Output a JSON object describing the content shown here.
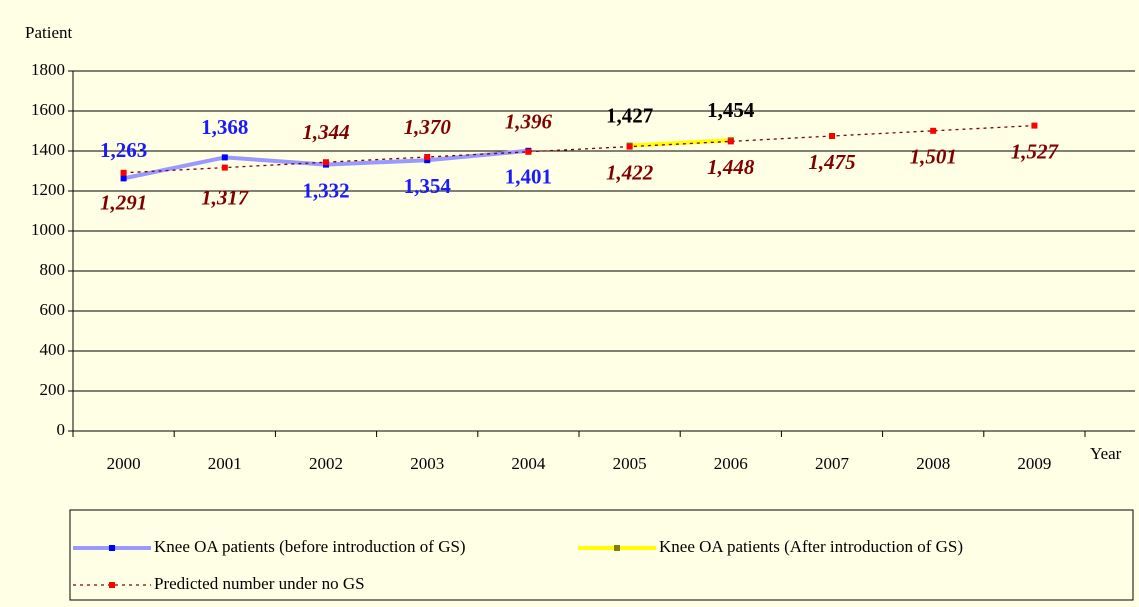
{
  "chart_data": {
    "type": "line",
    "y_label": "Patient",
    "x_label": "Year",
    "categories": [
      "2000",
      "2001",
      "2002",
      "2003",
      "2004",
      "2005",
      "2006",
      "2007",
      "2008",
      "2009"
    ],
    "ylim": [
      0,
      1800
    ],
    "yticks": [
      0,
      200,
      400,
      600,
      800,
      1000,
      1200,
      1400,
      1600,
      1800
    ],
    "grid": true,
    "legend": "bottom",
    "series": [
      {
        "name": "Knee OA patients (before introduction of GS)",
        "color": "#9999ff",
        "marker_color": "#0000ff",
        "label_color": "#1a1aff",
        "values": [
          1263,
          1368,
          1332,
          1354,
          1401,
          null,
          null,
          null,
          null,
          null
        ],
        "value_labels": [
          "1,263",
          "1,368",
          "1,332",
          "1,354",
          "1,401",
          null,
          null,
          null,
          null,
          null
        ]
      },
      {
        "name": "Knee OA patients (After introduction of GS)",
        "color": "#ffff00",
        "marker_color": "#808000",
        "label_color": "#000000",
        "values": [
          null,
          null,
          null,
          null,
          null,
          1427,
          1454,
          null,
          null,
          null
        ],
        "value_labels": [
          null,
          null,
          null,
          null,
          null,
          "1,427",
          "1,454",
          null,
          null,
          null
        ]
      },
      {
        "name": "Predicted number under no GS",
        "color": "#800000",
        "marker_color": "#ff0000",
        "label_color": "#800000",
        "values": [
          1291,
          1317,
          1344,
          1370,
          1396,
          1422,
          1448,
          1475,
          1501,
          1527
        ],
        "value_labels": [
          "1,291",
          "1,317",
          "1,344",
          "1,370",
          "1,396",
          "1,422",
          "1,448",
          "1,475",
          "1,501",
          "1,527"
        ]
      }
    ]
  }
}
